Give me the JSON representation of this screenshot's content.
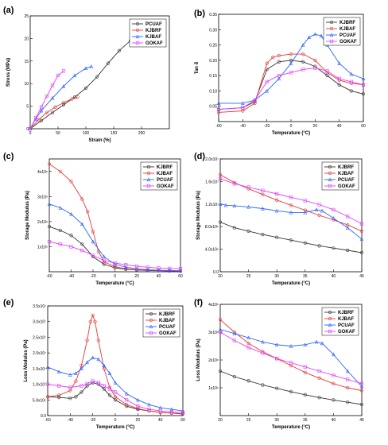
{
  "chart_data": [
    {
      "panel": "(a)",
      "type": "line",
      "xlabel": "Strain (%)",
      "ylabel": "Stress (MPa)",
      "xlim": [
        0,
        250
      ],
      "ylim": [
        0,
        25
      ],
      "xticks": [
        0,
        50,
        100,
        150,
        200
      ],
      "yticks": [
        0,
        5,
        10,
        15,
        20,
        25
      ],
      "xtick_labels": [
        "0",
        "50",
        "100",
        "150",
        "200"
      ],
      "ytick_labels": [
        "0",
        "5",
        "10",
        "15",
        "20",
        "25"
      ],
      "legend": "top-right",
      "series": [
        {
          "name": "PCUAF",
          "color": "#333333",
          "marker": "circle",
          "x": [
            0,
            20,
            40,
            60,
            80,
            100,
            120,
            140,
            160,
            180,
            190
          ],
          "y": [
            0,
            1.8,
            3.6,
            5.3,
            7.0,
            9.0,
            11.5,
            14.5,
            17.3,
            19.5,
            20.1
          ]
        },
        {
          "name": "KJBRF",
          "color": "#e53935",
          "marker": "circle",
          "x": [
            0,
            15,
            30,
            45,
            60,
            75,
            85
          ],
          "y": [
            0,
            2.0,
            3.6,
            4.8,
            5.8,
            6.6,
            7.0
          ]
        },
        {
          "name": "KJBAF",
          "color": "#2962ff",
          "marker": "triangle",
          "x": [
            0,
            10,
            20,
            40,
            60,
            80,
            100,
            110
          ],
          "y": [
            0,
            2.2,
            4.0,
            6.8,
            9.4,
            11.8,
            13.4,
            13.8
          ]
        },
        {
          "name": "GOKAF",
          "color": "#e040fb",
          "marker": "square",
          "x": [
            0,
            10,
            20,
            30,
            40,
            50,
            60
          ],
          "y": [
            0,
            2.4,
            4.8,
            7.2,
            9.6,
            11.8,
            12.8
          ]
        }
      ]
    },
    {
      "panel": "(b)",
      "type": "line",
      "xlabel": "Temperature (°C)",
      "ylabel": "Tan δ",
      "xlim": [
        -60,
        60
      ],
      "ylim": [
        0,
        0.35
      ],
      "xticks": [
        -60,
        -40,
        -20,
        0,
        20,
        40,
        60
      ],
      "yticks": [
        0.05,
        0.1,
        0.15,
        0.2,
        0.25,
        0.3,
        0.35
      ],
      "xtick_labels": [
        "-60",
        "-40",
        "-20",
        "0",
        "20",
        "40",
        "60"
      ],
      "ytick_labels": [
        "0.05",
        "0.10",
        "0.15",
        "0.20",
        "0.25",
        "0.30",
        "0.35"
      ],
      "legend": "top-right",
      "series": [
        {
          "name": "KJBRF",
          "color": "#333333",
          "marker": "circle",
          "x": [
            -60,
            -40,
            -30,
            -20,
            -10,
            0,
            10,
            20,
            30,
            40,
            50,
            60
          ],
          "y": [
            0.04,
            0.045,
            0.065,
            0.17,
            0.195,
            0.2,
            0.195,
            0.18,
            0.15,
            0.12,
            0.1,
            0.09
          ]
        },
        {
          "name": "KJBAF",
          "color": "#e53935",
          "marker": "circle",
          "x": [
            -60,
            -40,
            -30,
            -20,
            -15,
            -10,
            0,
            10,
            20,
            30,
            40,
            50,
            60
          ],
          "y": [
            0.03,
            0.035,
            0.06,
            0.19,
            0.21,
            0.215,
            0.22,
            0.22,
            0.2,
            0.16,
            0.135,
            0.125,
            0.12
          ]
        },
        {
          "name": "PCUAF",
          "color": "#2962ff",
          "marker": "triangle",
          "x": [
            -60,
            -40,
            -30,
            -20,
            -10,
            0,
            10,
            15,
            20,
            25,
            30,
            40,
            50,
            60
          ],
          "y": [
            0.06,
            0.06,
            0.07,
            0.1,
            0.14,
            0.19,
            0.25,
            0.275,
            0.285,
            0.28,
            0.25,
            0.19,
            0.155,
            0.14
          ]
        },
        {
          "name": "GOKAF",
          "color": "#e040fb",
          "marker": "square",
          "x": [
            -60,
            -40,
            -30,
            -20,
            -10,
            0,
            10,
            20,
            30,
            40,
            50,
            60
          ],
          "y": [
            0.04,
            0.045,
            0.07,
            0.13,
            0.15,
            0.16,
            0.17,
            0.175,
            0.165,
            0.14,
            0.13,
            0.12
          ]
        }
      ]
    },
    {
      "panel": "(c)",
      "type": "line",
      "xlabel": "Temperature (°C)",
      "ylabel": "Storage Modulus (Pa)",
      "xlim": [
        -60,
        60
      ],
      "ylim": [
        0,
        450000000.0
      ],
      "xticks": [
        -60,
        -40,
        -20,
        0,
        20,
        40,
        60
      ],
      "yticks": [
        100000000.0,
        200000000.0,
        300000000.0,
        400000000.0
      ],
      "xtick_labels": [
        "-60",
        "-40",
        "-20",
        "0",
        "20",
        "40",
        "60"
      ],
      "ytick_labels": [
        "1x10⁸",
        "2x10⁸",
        "3x10⁸",
        "4x10⁸"
      ],
      "legend": "top-right",
      "series": [
        {
          "name": "KJBRF",
          "color": "#333333",
          "marker": "circle",
          "x": [
            -60,
            -50,
            -40,
            -30,
            -20,
            -10,
            0,
            10,
            20,
            30,
            40,
            50,
            60
          ],
          "y": [
            180000000.0,
            165000000.0,
            145000000.0,
            110000000.0,
            60000000.0,
            30000000.0,
            16000000.0,
            10000000.0,
            7000000.0,
            5000000.0,
            4000000.0,
            3000000.0,
            3000000.0
          ]
        },
        {
          "name": "KJBAF",
          "color": "#e53935",
          "marker": "circle",
          "x": [
            -60,
            -50,
            -40,
            -30,
            -25,
            -20,
            -15,
            -10,
            0,
            10,
            20,
            30,
            40,
            50,
            60
          ],
          "y": [
            430000000.0,
            400000000.0,
            360000000.0,
            290000000.0,
            240000000.0,
            160000000.0,
            80000000.0,
            40000000.0,
            20000000.0,
            12000000.0,
            8000000.0,
            6000000.0,
            5000000.0,
            4000000.0,
            3000000.0
          ]
        },
        {
          "name": "PCUAF",
          "color": "#2962ff",
          "marker": "triangle",
          "x": [
            -60,
            -50,
            -40,
            -30,
            -20,
            -10,
            0,
            10,
            20,
            30,
            40,
            50,
            60
          ],
          "y": [
            270000000.0,
            255000000.0,
            230000000.0,
            190000000.0,
            120000000.0,
            60000000.0,
            30000000.0,
            18000000.0,
            12000000.0,
            8000000.0,
            6000000.0,
            5000000.0,
            4000000.0
          ]
        },
        {
          "name": "GOKAF",
          "color": "#e040fb",
          "marker": "square",
          "x": [
            -60,
            -50,
            -40,
            -30,
            -20,
            -10,
            0,
            10,
            20,
            30,
            40,
            50,
            60
          ],
          "y": [
            120000000.0,
            110000000.0,
            100000000.0,
            85000000.0,
            65000000.0,
            45000000.0,
            35000000.0,
            28000000.0,
            22000000.0,
            18000000.0,
            15000000.0,
            13000000.0,
            12000000.0
          ]
        }
      ]
    },
    {
      "panel": "(d)",
      "type": "line",
      "xlabel": "Temperature (°C)",
      "ylabel": "Storage Modulus (Pa)",
      "xlim": [
        20,
        45
      ],
      "ylim": [
        0,
        20000000.0
      ],
      "xticks": [
        20,
        25,
        30,
        35,
        40,
        45
      ],
      "yticks": [
        0,
        4000000.0,
        8000000.0,
        12000000.0,
        16000000.0,
        20000000.0
      ],
      "xtick_labels": [
        "20",
        "25",
        "30",
        "35",
        "40",
        "45"
      ],
      "ytick_labels": [
        "0.0",
        "4.0x10⁶",
        "8.0x10⁶",
        "1.2x10⁷",
        "1.6x10⁷",
        "2.0x10⁷"
      ],
      "legend": "top-right",
      "series": [
        {
          "name": "KJBRF",
          "color": "#333333",
          "marker": "circle",
          "x": [
            20,
            22.5,
            25,
            27.5,
            30,
            32.5,
            35,
            37.5,
            40,
            42.5,
            45
          ],
          "y": [
            8800000.0,
            7800000.0,
            7200000.0,
            6600000.0,
            6100000.0,
            5600000.0,
            5100000.0,
            4600000.0,
            4200000.0,
            3800000.0,
            3400000.0
          ]
        },
        {
          "name": "KJBAF",
          "color": "#e53935",
          "marker": "circle",
          "x": [
            20,
            22.5,
            25,
            27.5,
            30,
            32.5,
            35,
            37.5,
            40,
            42.5,
            45
          ],
          "y": [
            17200000.0,
            15800000.0,
            14700000.0,
            13700000.0,
            12700000.0,
            11800000.0,
            10900000.0,
            10000000.0,
            9200000.0,
            8300000.0,
            7200000.0
          ]
        },
        {
          "name": "PCUAF",
          "color": "#2962ff",
          "marker": "triangle",
          "x": [
            20,
            21,
            22.5,
            25,
            27.5,
            30,
            32.5,
            35,
            37,
            38,
            40,
            42.5,
            45
          ],
          "y": [
            12000000.0,
            11800000.0,
            11700000.0,
            11500000.0,
            11200000.0,
            10800000.0,
            10500000.0,
            10500000.0,
            11000000.0,
            10800000.0,
            9500000.0,
            7800000.0,
            5800000.0
          ]
        },
        {
          "name": "GOKAF",
          "color": "#e040fb",
          "marker": "square",
          "x": [
            20,
            22.5,
            25,
            27.5,
            30,
            32.5,
            35,
            37.5,
            40,
            42.5,
            45
          ],
          "y": [
            16500000.0,
            15600000.0,
            15000000.0,
            14400000.0,
            13800000.0,
            13200000.0,
            12600000.0,
            11900000.0,
            11000000.0,
            9800000.0,
            8500000.0
          ]
        }
      ]
    },
    {
      "panel": "(e)",
      "type": "line",
      "xlabel": "Temperature (°C)",
      "ylabel": "Loss Modulus (Pa)",
      "xlim": [
        -60,
        60
      ],
      "ylim": [
        0,
        35000000.0
      ],
      "xticks": [
        -60,
        -40,
        -20,
        0,
        20,
        40,
        60
      ],
      "yticks": [
        0,
        5000000.0,
        10000000.0,
        15000000.0,
        20000000.0,
        25000000.0,
        30000000.0,
        35000000.0
      ],
      "xtick_labels": [
        "-60",
        "-40",
        "-20",
        "0",
        "20",
        "40",
        "60"
      ],
      "ytick_labels": [
        "0.0",
        "5.0x10⁶",
        "1.0x10⁷",
        "1.5x10⁷",
        "2.0x10⁷",
        "2.5x10⁷",
        "3.0x10⁷",
        "3.5x10⁷"
      ],
      "legend": "top-right",
      "series": [
        {
          "name": "KJBRF",
          "color": "#333333",
          "marker": "circle",
          "x": [
            -60,
            -50,
            -40,
            -35,
            -30,
            -25,
            -20,
            -15,
            -10,
            -5,
            0,
            10,
            20,
            30,
            40,
            50,
            60
          ],
          "y": [
            6000000.0,
            5800000.0,
            5500000.0,
            6000000.0,
            7500000.0,
            9500000.0,
            10500000.0,
            10000000.0,
            8500000.0,
            6500000.0,
            5000000.0,
            3000000.0,
            2000000.0,
            1500000.0,
            1000000.0,
            800000.0,
            500000.0
          ]
        },
        {
          "name": "KJBAF",
          "color": "#e53935",
          "marker": "circle",
          "x": [
            -60,
            -50,
            -40,
            -35,
            -30,
            -25,
            -22,
            -20,
            -18,
            -15,
            -10,
            -5,
            0,
            10,
            20,
            30,
            40,
            50,
            60
          ],
          "y": [
            6000000.0,
            6500000.0,
            8000000.0,
            11000000.0,
            16000000.0,
            24000000.0,
            30000000.0,
            32000000.0,
            30000000.0,
            24000000.0,
            15000000.0,
            9000000.0,
            6000000.0,
            3500000.0,
            2200000.0,
            1500000.0,
            1000000.0,
            800000.0,
            600000.0
          ]
        },
        {
          "name": "PCUAF",
          "color": "#2962ff",
          "marker": "triangle",
          "x": [
            -60,
            -50,
            -40,
            -35,
            -30,
            -25,
            -20,
            -15,
            -10,
            -5,
            0,
            10,
            20,
            30,
            40,
            50,
            60
          ],
          "y": [
            15500000.0,
            14000000.0,
            13000000.0,
            13500000.0,
            15000000.0,
            17000000.0,
            18500000.0,
            18000000.0,
            16000000.0,
            13500000.0,
            10500000.0,
            7000000.0,
            5000000.0,
            3500000.0,
            2500000.0,
            2000000.0,
            1500000.0
          ]
        },
        {
          "name": "GOKAF",
          "color": "#e040fb",
          "marker": "square",
          "x": [
            -60,
            -50,
            -40,
            -30,
            -25,
            -20,
            -15,
            -10,
            -5,
            0,
            10,
            20,
            30,
            40,
            50,
            60
          ],
          "y": [
            10000000.0,
            9500000.0,
            9000000.0,
            9500000.0,
            10200000.0,
            11000000.0,
            10500000.0,
            9500000.0,
            8500000.0,
            7500000.0,
            5000000.0,
            3000000.0,
            2000000.0,
            1500000.0,
            1200000.0,
            1000000.0
          ]
        }
      ]
    },
    {
      "panel": "(f)",
      "type": "line",
      "xlabel": "Temperature (°C)",
      "ylabel": "Loss Modulus (Pa)",
      "xlim": [
        20,
        45
      ],
      "ylim": [
        0,
        4000000.0
      ],
      "xticks": [
        20,
        25,
        30,
        35,
        40,
        45
      ],
      "yticks": [
        1000000.0,
        2000000.0,
        3000000.0,
        4000000.0
      ],
      "xtick_labels": [
        "20",
        "25",
        "30",
        "35",
        "40",
        "45"
      ],
      "ytick_labels": [
        "1x10⁶",
        "2x10⁶",
        "3x10⁶",
        "4x10⁶"
      ],
      "legend": "top-right",
      "series": [
        {
          "name": "KJBRF",
          "color": "#333333",
          "marker": "circle",
          "x": [
            20,
            22.5,
            25,
            27.5,
            30,
            32.5,
            35,
            37.5,
            40,
            42.5,
            45
          ],
          "y": [
            1600000.0,
            1400000.0,
            1250000.0,
            1100000.0,
            980000.0,
            860000.0,
            750000.0,
            650000.0,
            560000.0,
            480000.0,
            400000.0
          ]
        },
        {
          "name": "KJBAF",
          "color": "#e53935",
          "marker": "circle",
          "x": [
            20,
            22.5,
            25,
            27.5,
            30,
            32.5,
            35,
            37.5,
            40,
            42.5,
            45
          ],
          "y": [
            3450000.0,
            3000000.0,
            2600000.0,
            2300000.0,
            2050000.0,
            1800000.0,
            1550000.0,
            1350000.0,
            1150000.0,
            1000000.0,
            900000.0
          ]
        },
        {
          "name": "PCUAF",
          "color": "#2962ff",
          "marker": "triangle",
          "x": [
            20,
            22.5,
            25,
            27.5,
            30,
            32.5,
            35,
            37,
            38,
            40,
            42.5,
            45
          ],
          "y": [
            3100000.0,
            2950000.0,
            2800000.0,
            2650000.0,
            2550000.0,
            2500000.0,
            2550000.0,
            2650000.0,
            2600000.0,
            2200000.0,
            1600000.0,
            1050000.0
          ]
        },
        {
          "name": "GOKAF",
          "color": "#e040fb",
          "marker": "square",
          "x": [
            20,
            22.5,
            25,
            27.5,
            30,
            32.5,
            35,
            37.5,
            40,
            42.5,
            45
          ],
          "y": [
            3000000.0,
            2700000.0,
            2450000.0,
            2250000.0,
            2050000.0,
            1900000.0,
            1750000.0,
            1600000.0,
            1450000.0,
            1300000.0,
            1150000.0
          ]
        }
      ]
    }
  ]
}
